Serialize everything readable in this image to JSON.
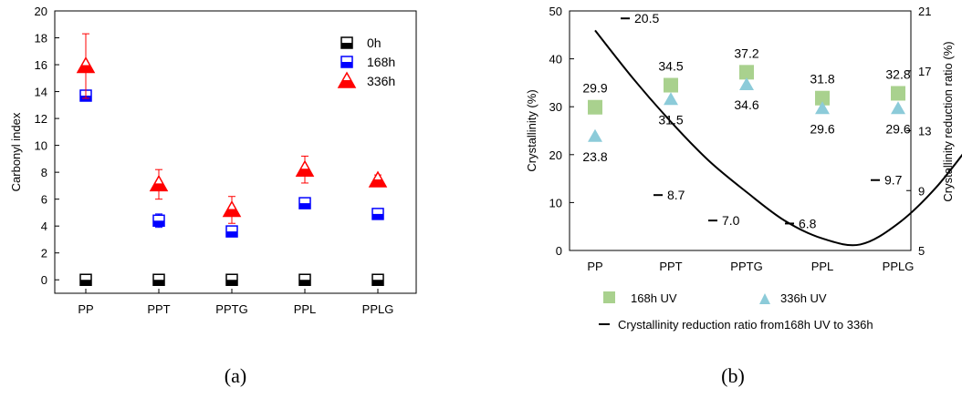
{
  "chart_data": [
    {
      "type": "scatter",
      "panel_label": "(a)",
      "ylabel": "Carbonyl index",
      "xlabel": "",
      "ylim": [
        -1,
        20
      ],
      "yticks": [
        0,
        2,
        4,
        6,
        8,
        10,
        12,
        14,
        16,
        18,
        20
      ],
      "categories": [
        "PP",
        "PPT",
        "PPTG",
        "PPL",
        "PPLG"
      ],
      "legend_position": "top-right",
      "series": [
        {
          "name": "0h",
          "marker": "half-filled-square",
          "color": "#000000",
          "values": [
            0,
            0,
            0,
            0,
            0
          ],
          "err": [
            0,
            0,
            0,
            0,
            0
          ]
        },
        {
          "name": "168h",
          "marker": "half-filled-square",
          "color": "#0000ff",
          "values": [
            13.7,
            4.4,
            3.6,
            5.7,
            4.9
          ],
          "err": [
            0.3,
            0.5,
            0.4,
            0.4,
            0.3
          ]
        },
        {
          "name": "336h",
          "marker": "half-filled-triangle",
          "color": "#ff0000",
          "values": [
            15.9,
            7.1,
            5.2,
            8.2,
            7.4
          ],
          "err": [
            2.4,
            1.1,
            1.0,
            1.0,
            0.4
          ]
        }
      ]
    },
    {
      "type": "scatter",
      "panel_label": "(b)",
      "ylabel": "Crystallinity (%)",
      "y2label": "Crystallinity reduction ratio (%)",
      "xlabel": "",
      "ylim": [
        0,
        50
      ],
      "yticks": [
        0,
        10,
        20,
        30,
        40,
        50
      ],
      "y2lim": [
        5,
        21
      ],
      "y2ticks": [
        5,
        9,
        13,
        17,
        21
      ],
      "categories": [
        "PP",
        "PPT",
        "PPTG",
        "PPL",
        "PPLG"
      ],
      "legend_position": "bottom",
      "series": [
        {
          "name": "168h UV",
          "marker": "square",
          "color": "#a9d18e",
          "values": [
            29.9,
            34.5,
            37.2,
            31.8,
            32.8
          ],
          "labels": [
            "29.9",
            "34.5",
            "37.2",
            "31.8",
            "32.8"
          ]
        },
        {
          "name": "336h UV",
          "marker": "triangle",
          "color": "#8ccbd9",
          "values": [
            23.8,
            31.5,
            34.6,
            29.6,
            29.6
          ],
          "labels": [
            "23.8",
            "31.5",
            "34.6",
            "29.6",
            "29.6"
          ]
        },
        {
          "name": "Crystallinity reduction ratio from168h UV to 336h",
          "marker": "dash",
          "axis": "right",
          "color": "#000000",
          "values": [
            20.5,
            8.7,
            7.0,
            6.8,
            9.7
          ],
          "labels": [
            "20.5",
            "8.7",
            "7.0",
            "6.8",
            "9.7"
          ]
        }
      ],
      "fit_curve_right_axis": [
        [
          0.0,
          19.7
        ],
        [
          0.5,
          16.5
        ],
        [
          1.0,
          13.6
        ],
        [
          1.5,
          11.0
        ],
        [
          2.0,
          8.9
        ],
        [
          2.5,
          7.0
        ],
        [
          3.0,
          5.8
        ],
        [
          3.5,
          5.4
        ],
        [
          4.0,
          6.8
        ],
        [
          4.5,
          9.2
        ],
        [
          5.0,
          12.4
        ]
      ]
    }
  ]
}
